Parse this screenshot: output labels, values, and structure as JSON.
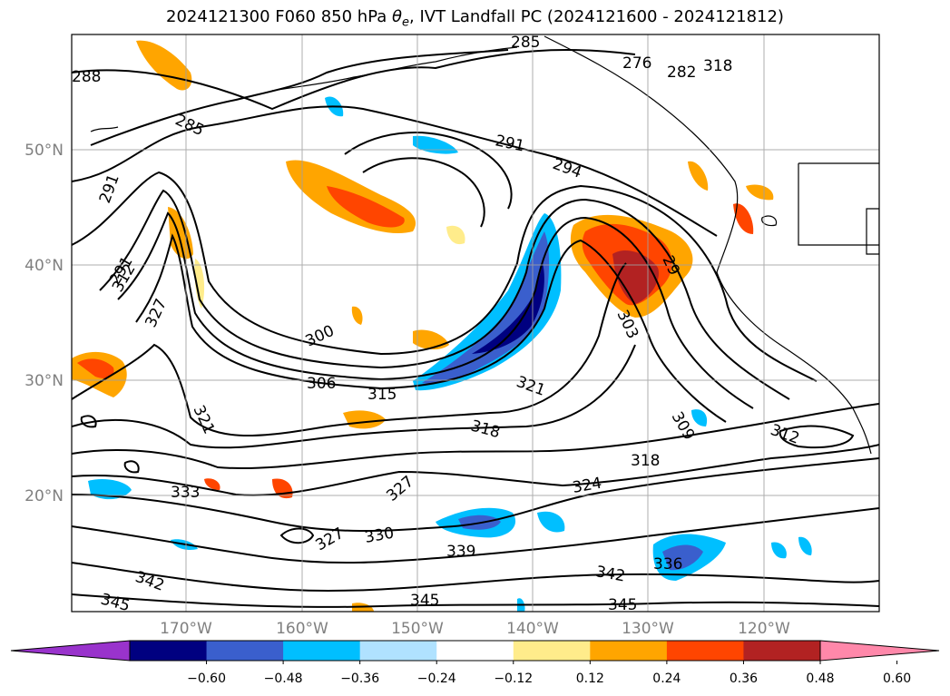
{
  "title_prefix": "2024121300 F060 850 hPa ",
  "title_symbol": "θ",
  "title_symbol_sub": "e",
  "title_suffix": ", IVT Landfall PC (2024121600 - 2024121812)",
  "lat_labels": [
    "50°N",
    "40°N",
    "30°N",
    "20°N"
  ],
  "lon_labels": [
    "170°W",
    "160°W",
    "150°W",
    "140°W",
    "130°W",
    "120°W"
  ],
  "colorbar": {
    "ticks": [
      "−0.60",
      "−0.48",
      "−0.36",
      "−0.24",
      "−0.12",
      "0.12",
      "0.24",
      "0.36",
      "0.48",
      "0.60"
    ],
    "colors": [
      "#9933cc",
      "#000080",
      "#3a5fcd",
      "#00bfff",
      "#b0e2ff",
      "#ffffff",
      "#ffec8b",
      "#ffa500",
      "#ff4500",
      "#b22222",
      "#ff88aa"
    ]
  },
  "contour_labels": [
    "288",
    "285",
    "285",
    "276",
    "282",
    "318",
    "291",
    "291",
    "294",
    "291",
    "29",
    "312",
    "327",
    "300",
    "306",
    "315",
    "303",
    "321",
    "321",
    "309",
    "318",
    "312",
    "318",
    "333",
    "327",
    "324",
    "327",
    "330",
    "339",
    "342",
    "336",
    "342",
    "345",
    "345",
    "345"
  ]
}
